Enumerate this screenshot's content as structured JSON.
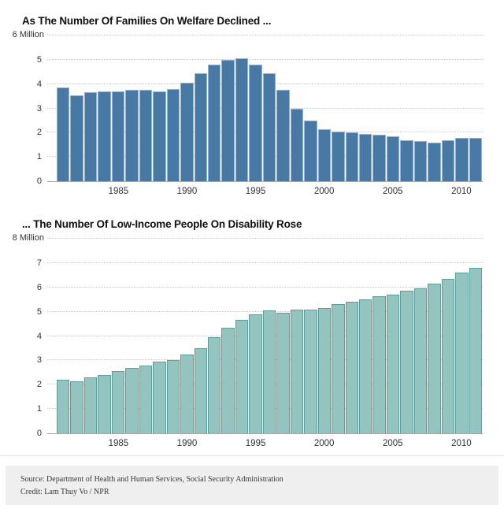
{
  "chart_data": [
    {
      "type": "bar",
      "title": "As The Number Of Families On Welfare Declined ...",
      "unit_label": "6 Million",
      "ylim": [
        0,
        6
      ],
      "yticks": [
        0,
        1,
        2,
        3,
        4,
        5
      ],
      "xticks": [
        1985,
        1990,
        1995,
        2000,
        2005,
        2010
      ],
      "grid": true,
      "bar_color": "#4879a4",
      "bar_border_color": "#93b4d4",
      "x": [
        1981,
        1982,
        1983,
        1984,
        1985,
        1986,
        1987,
        1988,
        1989,
        1990,
        1991,
        1992,
        1993,
        1994,
        1995,
        1996,
        1997,
        1998,
        1999,
        2000,
        2001,
        2002,
        2003,
        2004,
        2005,
        2006,
        2007,
        2008,
        2009,
        2010,
        2011
      ],
      "values": [
        3.85,
        3.55,
        3.65,
        3.7,
        3.7,
        3.75,
        3.75,
        3.7,
        3.8,
        4.05,
        4.45,
        4.8,
        5.0,
        5.05,
        4.8,
        4.45,
        3.75,
        3.0,
        2.5,
        2.15,
        2.05,
        2.0,
        1.95,
        1.9,
        1.85,
        1.7,
        1.65,
        1.6,
        1.7,
        1.8,
        1.8
      ]
    },
    {
      "type": "bar",
      "title": "... The Number Of Low-Income People On Disability Rose",
      "unit_label": "8 Million",
      "ylim": [
        0,
        8
      ],
      "yticks": [
        0,
        1,
        2,
        3,
        4,
        5,
        6,
        7
      ],
      "xticks": [
        1985,
        1990,
        1995,
        2000,
        2005,
        2010
      ],
      "grid": true,
      "bar_color": "#93c4c0",
      "bar_border_color": "#5d9e9a",
      "x": [
        1981,
        1982,
        1983,
        1984,
        1985,
        1986,
        1987,
        1988,
        1989,
        1990,
        1991,
        1992,
        1993,
        1994,
        1995,
        1996,
        1997,
        1998,
        1999,
        2000,
        2001,
        2002,
        2003,
        2004,
        2005,
        2006,
        2007,
        2008,
        2009,
        2010,
        2011
      ],
      "values": [
        2.2,
        2.15,
        2.3,
        2.4,
        2.55,
        2.7,
        2.8,
        2.95,
        3.0,
        3.25,
        3.5,
        3.95,
        4.35,
        4.65,
        4.9,
        5.05,
        4.95,
        5.1,
        5.1,
        5.15,
        5.3,
        5.4,
        5.5,
        5.65,
        5.7,
        5.85,
        5.95,
        6.15,
        6.35,
        6.6,
        6.8
      ]
    }
  ],
  "footer": {
    "source": "Source: Department of Health and Human Services, Social Security Administration",
    "credit": "Credit: Lam Thuy Vo / NPR"
  }
}
